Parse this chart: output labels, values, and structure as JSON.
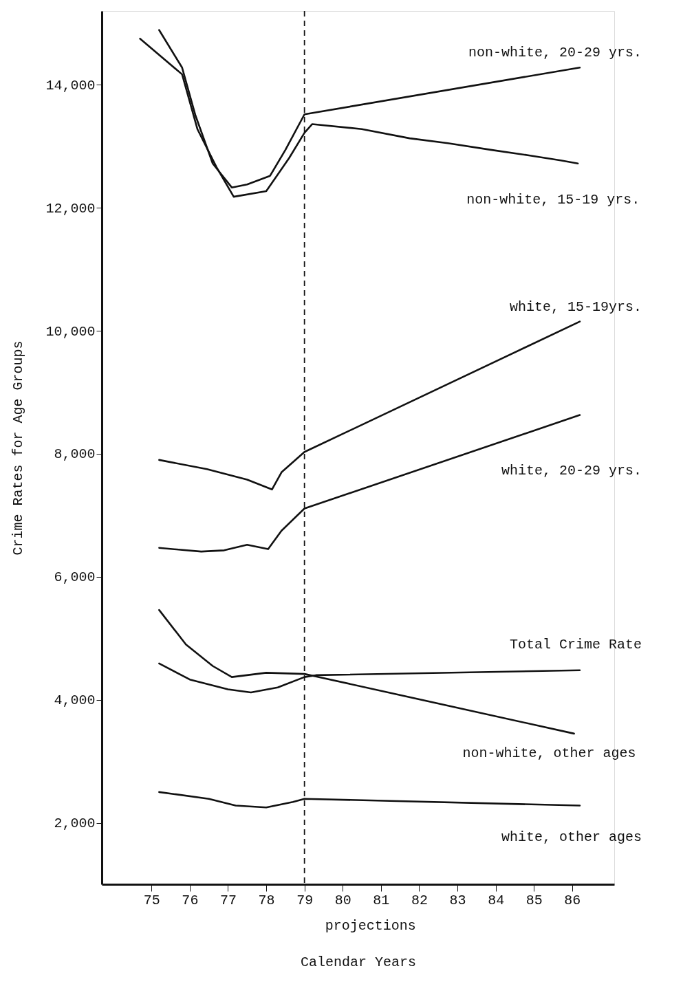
{
  "chart_data": {
    "type": "line",
    "xlabel": "Calendar Years",
    "ylabel": "Crime Rates for Age Groups",
    "xlim": [
      73.7,
      87.1
    ],
    "xticks": [
      75,
      76,
      77,
      78,
      79,
      80,
      81,
      82,
      83,
      84,
      85,
      86
    ],
    "ylim": [
      1000,
      15200
    ],
    "yticks": [
      {
        "value": 2000,
        "label": "2,000"
      },
      {
        "value": 4000,
        "label": "4,000"
      },
      {
        "value": 6000,
        "label": "6,000"
      },
      {
        "value": 8000,
        "label": "8,000"
      },
      {
        "value": 10000,
        "label": "10,000"
      },
      {
        "value": 12000,
        "label": "12,000"
      },
      {
        "value": 14000,
        "label": "14,000"
      }
    ],
    "grid": false,
    "legend": false,
    "marker": "none",
    "line_style": "solid",
    "series": [
      {
        "name": "non-white, 20-29 yrs.",
        "color": "#111111",
        "x": [
          75.2,
          75.8,
          76.15,
          76.6,
          77.1,
          77.5,
          78.1,
          78.5,
          79,
          86.2
        ],
        "values": [
          14890,
          14280,
          13500,
          12720,
          12330,
          12380,
          12520,
          12940,
          13520,
          14280
        ]
      },
      {
        "name": "non-white, 15-19 yrs.",
        "color": "#111111",
        "x": [
          74.7,
          75.8,
          76.2,
          76.7,
          77.15,
          78.0,
          78.6,
          79,
          79.2,
          80.5,
          81.75,
          82.75,
          83.9,
          84.9,
          85.7,
          86.15
        ],
        "values": [
          14750,
          14170,
          13280,
          12660,
          12180,
          12270,
          12810,
          13220,
          13360,
          13280,
          13130,
          13050,
          12940,
          12850,
          12770,
          12720
        ]
      },
      {
        "name": "white, 15-19yrs.",
        "color": "#111111",
        "x": [
          75.2,
          76.45,
          77.5,
          78.15,
          78.4,
          79,
          86.2
        ],
        "values": [
          7900,
          7750,
          7580,
          7420,
          7700,
          8030,
          10150
        ]
      },
      {
        "name": "white, 20-29 yrs.",
        "color": "#111111",
        "x": [
          75.2,
          76.3,
          76.9,
          77.5,
          78.05,
          78.4,
          79,
          86.2
        ],
        "values": [
          6470,
          6410,
          6430,
          6520,
          6450,
          6750,
          7110,
          8630
        ]
      },
      {
        "name": "Total Crime Rate",
        "color": "#111111",
        "x": [
          75.2,
          76.0,
          77.0,
          77.6,
          78.3,
          79,
          79.3,
          86.2
        ],
        "values": [
          4590,
          4330,
          4170,
          4120,
          4200,
          4370,
          4400,
          4480
        ]
      },
      {
        "name": "non-white, other ages",
        "color": "#111111",
        "x": [
          75.2,
          75.9,
          76.6,
          77.1,
          78.0,
          79,
          79.3,
          86.05
        ],
        "values": [
          5460,
          4900,
          4550,
          4370,
          4440,
          4420,
          4380,
          3450
        ]
      },
      {
        "name": "white, other ages",
        "color": "#111111",
        "x": [
          75.2,
          76.5,
          77.2,
          78.0,
          78.7,
          79,
          86.2
        ],
        "values": [
          2500,
          2390,
          2280,
          2250,
          2340,
          2390,
          2280
        ]
      }
    ],
    "ref_lines": [
      {
        "axis": "x",
        "value": 79,
        "label": "projections",
        "color": "#111111",
        "line_style": "dashed"
      }
    ]
  }
}
